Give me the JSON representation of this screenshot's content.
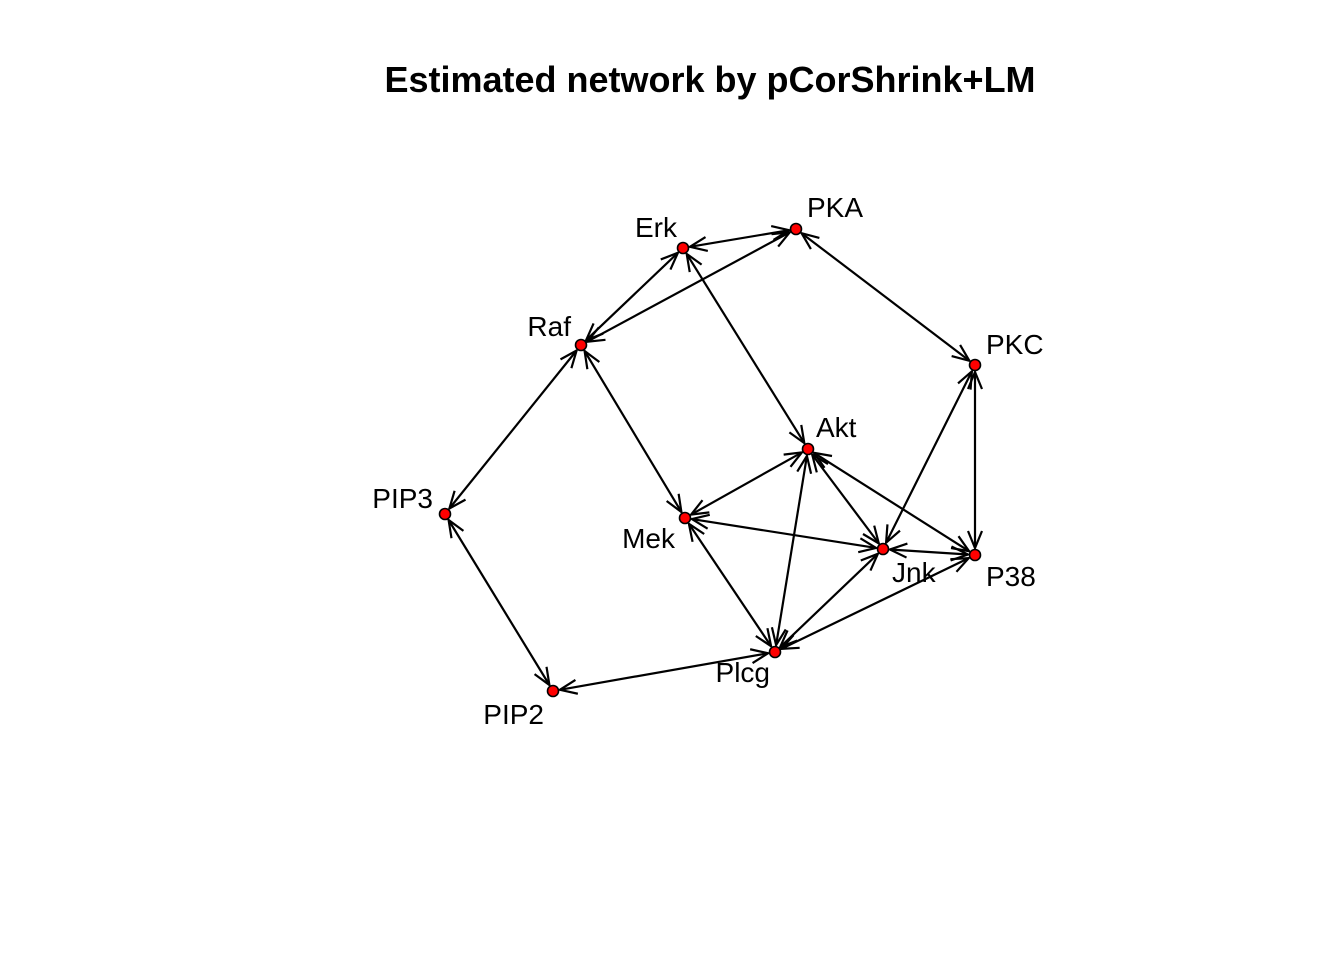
{
  "title": "Estimated network by pCorShrink+LM",
  "colors": {
    "node_fill": "#ff0000",
    "node_stroke": "#000000",
    "edge": "#000000",
    "text": "#000000",
    "background": "#ffffff"
  },
  "graph": {
    "directed": false,
    "edge_style": "double-arrow",
    "nodes": [
      {
        "id": "Erk",
        "label": "Erk"
      },
      {
        "id": "PKA",
        "label": "PKA"
      },
      {
        "id": "Raf",
        "label": "Raf"
      },
      {
        "id": "PKC",
        "label": "PKC"
      },
      {
        "id": "Akt",
        "label": "Akt"
      },
      {
        "id": "PIP3",
        "label": "PIP3"
      },
      {
        "id": "Mek",
        "label": "Mek"
      },
      {
        "id": "Jnk",
        "label": "Jnk"
      },
      {
        "id": "P38",
        "label": "P38"
      },
      {
        "id": "Plcg",
        "label": "Plcg"
      },
      {
        "id": "PIP2",
        "label": "PIP2"
      }
    ],
    "edges": [
      {
        "from": "Erk",
        "to": "PKA"
      },
      {
        "from": "Erk",
        "to": "Raf"
      },
      {
        "from": "PKA",
        "to": "Raf"
      },
      {
        "from": "Erk",
        "to": "Akt"
      },
      {
        "from": "PKA",
        "to": "PKC"
      },
      {
        "from": "Raf",
        "to": "PIP3"
      },
      {
        "from": "Raf",
        "to": "Mek"
      },
      {
        "from": "PKC",
        "to": "Jnk"
      },
      {
        "from": "PKC",
        "to": "P38"
      },
      {
        "from": "Akt",
        "to": "Mek"
      },
      {
        "from": "Akt",
        "to": "Jnk"
      },
      {
        "from": "Akt",
        "to": "P38"
      },
      {
        "from": "Akt",
        "to": "Plcg"
      },
      {
        "from": "Mek",
        "to": "Jnk"
      },
      {
        "from": "Mek",
        "to": "Plcg"
      },
      {
        "from": "Jnk",
        "to": "P38"
      },
      {
        "from": "Jnk",
        "to": "Plcg"
      },
      {
        "from": "P38",
        "to": "Plcg"
      },
      {
        "from": "PIP3",
        "to": "PIP2"
      },
      {
        "from": "PIP2",
        "to": "Plcg"
      }
    ]
  }
}
